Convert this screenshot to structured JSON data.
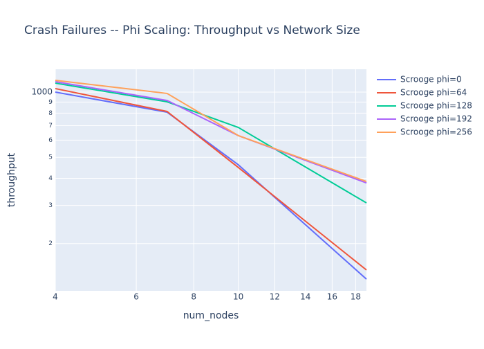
{
  "chart_data": {
    "type": "line",
    "title": "Crash Failures -- Phi Scaling: Throughput vs Network Size",
    "x_label": "num_nodes",
    "y_label": "throughput",
    "x": [
      4,
      7,
      10,
      19
    ],
    "series": [
      {
        "name": "Scrooge phi=0",
        "color": "#636efa",
        "values": [
          1000,
          808,
          462,
          137
        ]
      },
      {
        "name": "Scrooge phi=64",
        "color": "#EF553B",
        "values": [
          1038,
          814,
          449,
          151
        ]
      },
      {
        "name": "Scrooge phi=128",
        "color": "#00cc96",
        "values": [
          1100,
          902,
          687,
          308
        ]
      },
      {
        "name": "Scrooge phi=192",
        "color": "#ab63fa",
        "values": [
          1117,
          915,
          630,
          381
        ]
      },
      {
        "name": "Scrooge phi=256",
        "color": "#FFA15A",
        "values": [
          1133,
          986,
          630,
          387
        ]
      }
    ],
    "xlim": [
      4,
      19
    ],
    "ylim": [
      121,
      1275
    ],
    "xticks": [
      4,
      6,
      8,
      10,
      12,
      14,
      16,
      18
    ],
    "yticks": [
      {
        "value": 200,
        "label": "2"
      },
      {
        "value": 300,
        "label": "3"
      },
      {
        "value": 400,
        "label": "4"
      },
      {
        "value": 500,
        "label": "5"
      },
      {
        "value": 600,
        "label": "6"
      },
      {
        "value": 700,
        "label": "7"
      },
      {
        "value": 800,
        "label": "8"
      },
      {
        "value": 900,
        "label": "9"
      },
      1000
    ],
    "xlog": true,
    "ylog": true,
    "grid": true,
    "legend": "right"
  }
}
